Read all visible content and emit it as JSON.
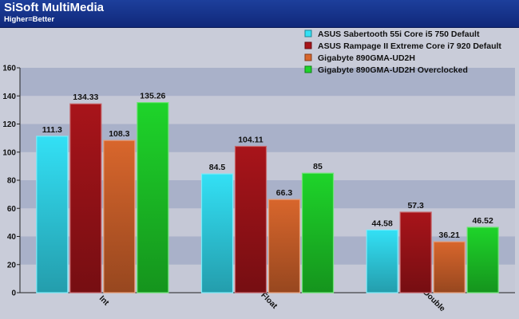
{
  "header": {
    "title": "SiSoft MultiMedia",
    "subtitle": "Higher=Better"
  },
  "chart_data": {
    "type": "bar",
    "title": "SiSoft MultiMedia",
    "subtitle": "Higher=Better",
    "xlabel": "",
    "ylabel": "",
    "categories": [
      "Int",
      "Float",
      "Double"
    ],
    "ylim": [
      0,
      160
    ],
    "yticks": [
      0,
      20,
      40,
      60,
      80,
      100,
      120,
      140,
      160
    ],
    "grid": "horizontal bands",
    "legend_position": "top-right",
    "series": [
      {
        "name": "ASUS Sabertooth 55i Core i5 750 Default",
        "values": [
          111.3,
          84.5,
          44.58
        ],
        "color": "#33e0f5"
      },
      {
        "name": "ASUS Rampage II Extreme Core i7 920 Default",
        "values": [
          134.33,
          104.11,
          57.3
        ],
        "color": "#a8141a"
      },
      {
        "name": "Gigabyte 890GMA-UD2H",
        "values": [
          108.3,
          66.3,
          36.21
        ],
        "color": "#d8662c"
      },
      {
        "name": "Gigabyte 890GMA-UD2H Overclocked",
        "values": [
          135.26,
          85,
          46.52
        ],
        "color": "#1ed42a"
      }
    ]
  }
}
